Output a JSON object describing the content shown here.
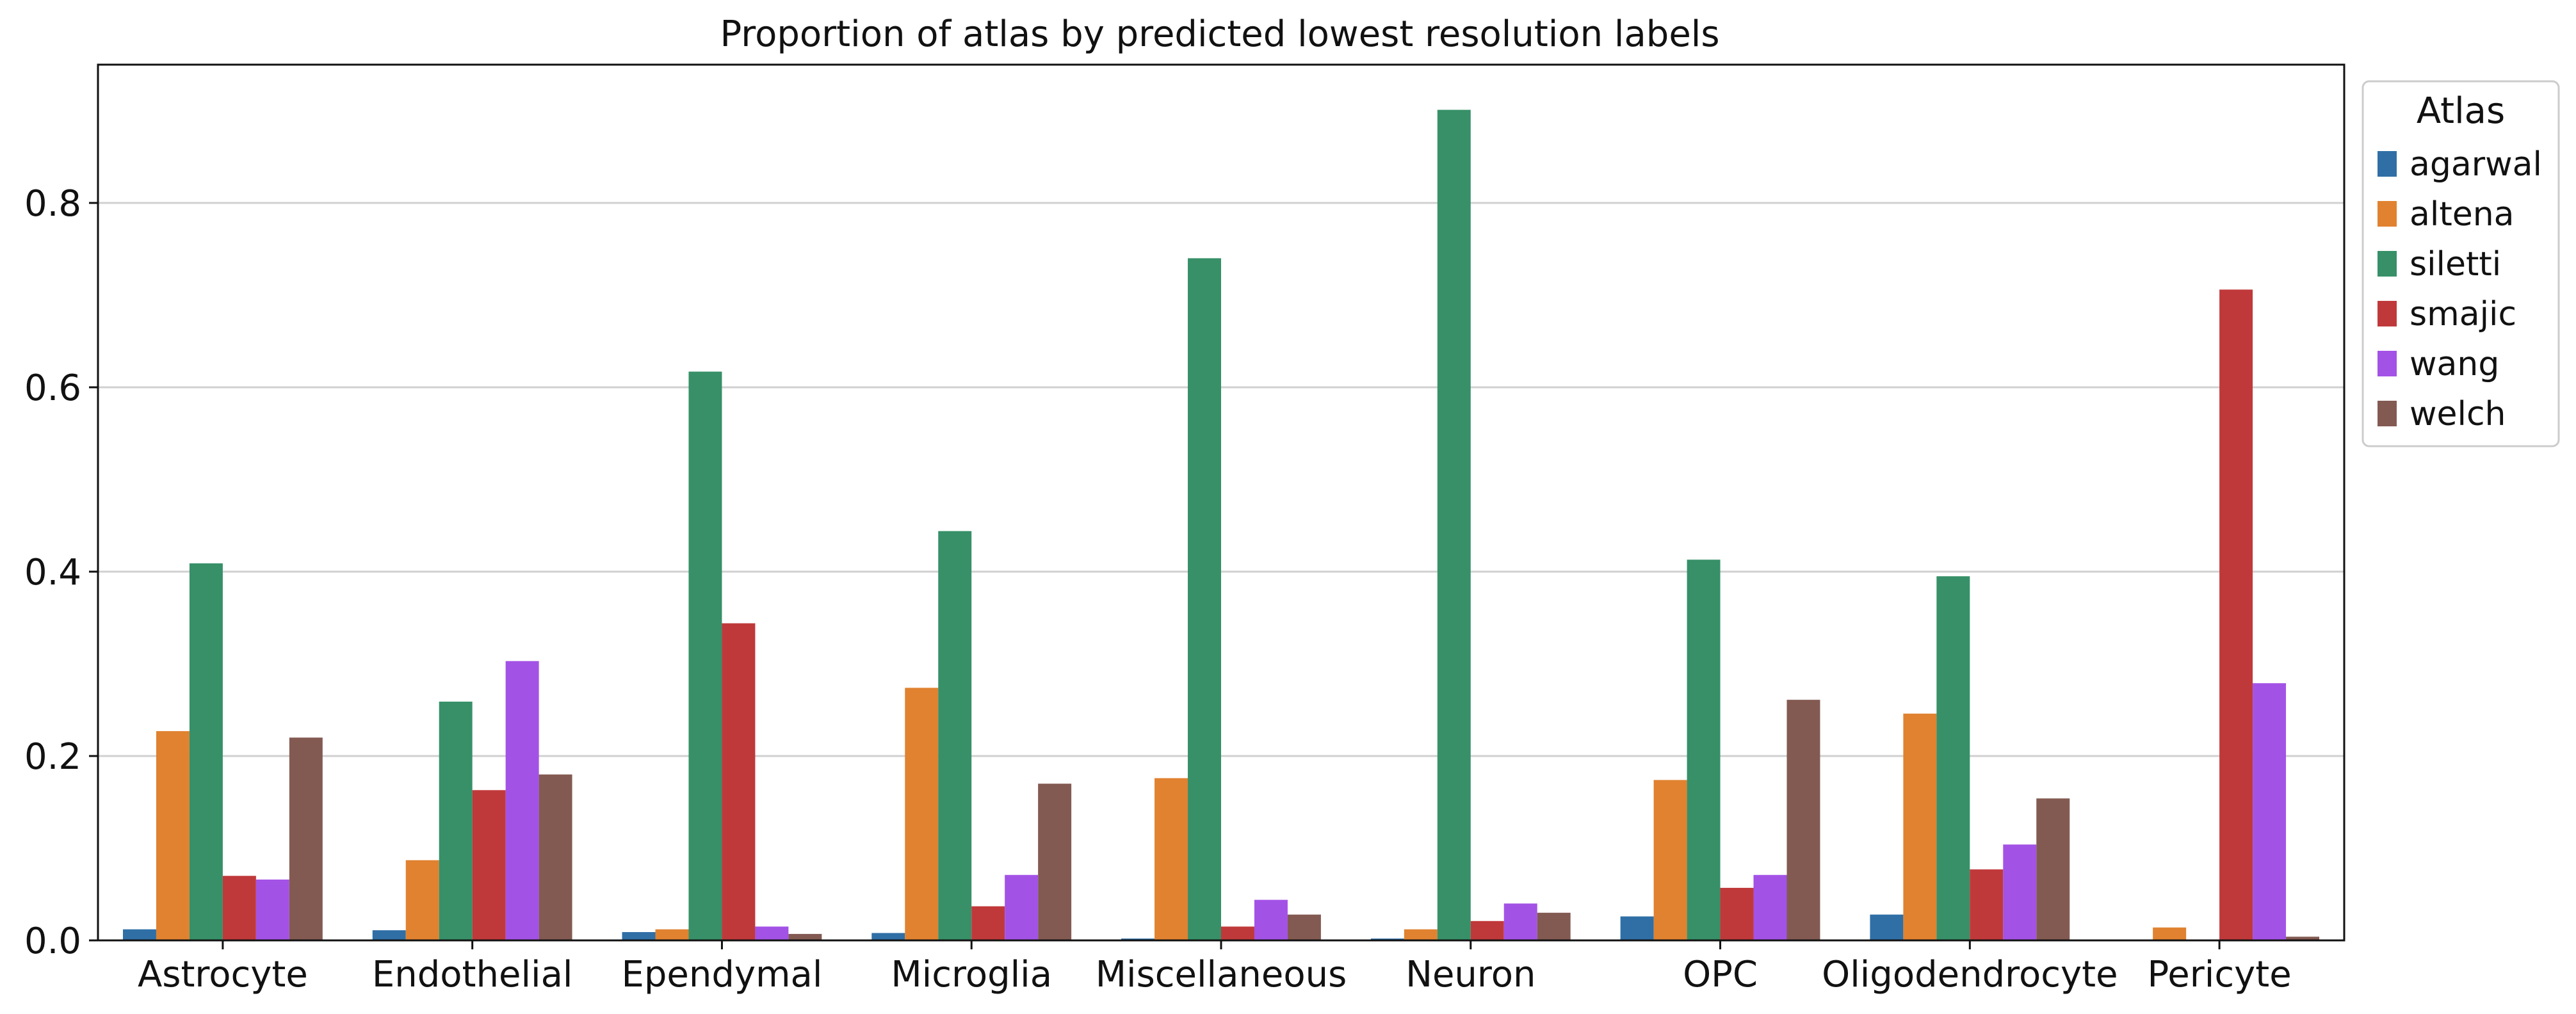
{
  "chart_data": {
    "type": "bar",
    "title": "Proportion of atlas by predicted lowest resolution labels",
    "xlabel": "",
    "ylabel": "",
    "ylim": [
      0,
      0.95
    ],
    "yticks": [
      0.0,
      0.2,
      0.4,
      0.6,
      0.8
    ],
    "ytick_labels": [
      "0.0",
      "0.2",
      "0.4",
      "0.6",
      "0.8"
    ],
    "grid": "horizontal",
    "legend_position": "outside-top-right",
    "legend_title": "Atlas",
    "categories": [
      "Astrocyte",
      "Endothelial",
      "Ependymal",
      "Microglia",
      "Miscellaneous",
      "Neuron",
      "OPC",
      "Oligodendrocyte",
      "Pericyte"
    ],
    "series": [
      {
        "name": "agarwal",
        "color": "#2f6fa6",
        "values": [
          0.012,
          0.011,
          0.009,
          0.008,
          0.002,
          0.002,
          0.026,
          0.028,
          0.0
        ]
      },
      {
        "name": "altena",
        "color": "#e08230",
        "values": [
          0.227,
          0.087,
          0.012,
          0.274,
          0.176,
          0.012,
          0.174,
          0.246,
          0.014
        ]
      },
      {
        "name": "siletti",
        "color": "#379068",
        "values": [
          0.409,
          0.259,
          0.617,
          0.444,
          0.74,
          0.901,
          0.413,
          0.395,
          0.0
        ]
      },
      {
        "name": "smajic",
        "color": "#c0393a",
        "values": [
          0.07,
          0.163,
          0.344,
          0.037,
          0.015,
          0.021,
          0.057,
          0.077,
          0.706
        ]
      },
      {
        "name": "wang",
        "color": "#a352e6",
        "values": [
          0.066,
          0.303,
          0.015,
          0.071,
          0.044,
          0.04,
          0.071,
          0.104,
          0.279
        ]
      },
      {
        "name": "welch",
        "color": "#835a52",
        "values": [
          0.22,
          0.18,
          0.007,
          0.17,
          0.028,
          0.03,
          0.261,
          0.154,
          0.004
        ]
      }
    ]
  }
}
